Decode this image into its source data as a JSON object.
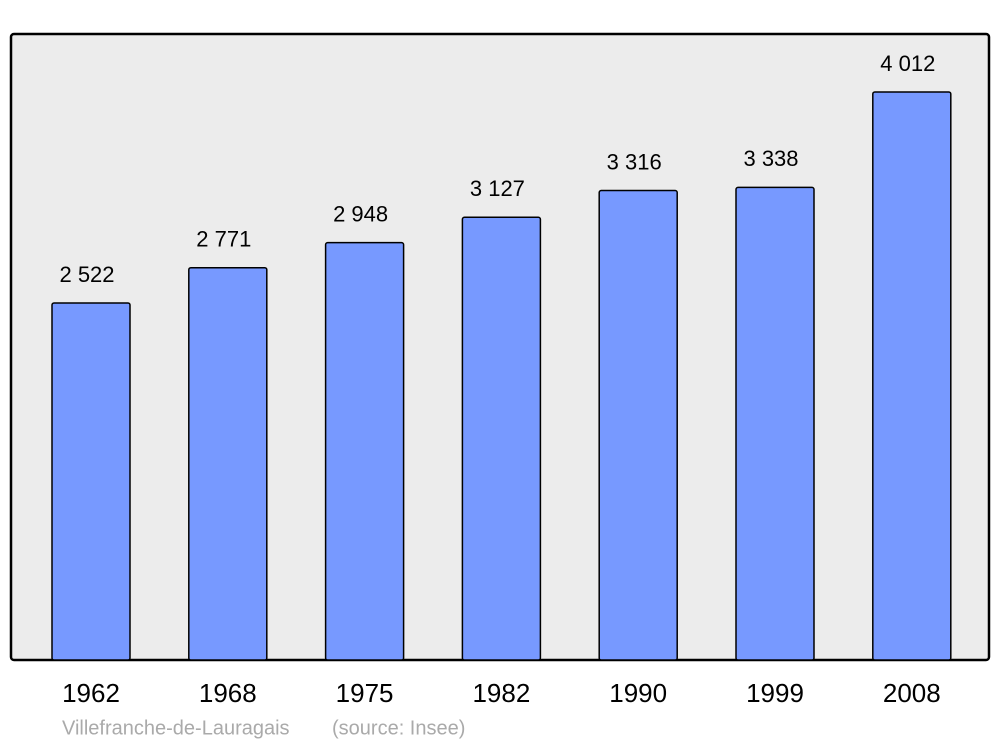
{
  "chart_data": {
    "type": "bar",
    "categories": [
      "1962",
      "1968",
      "1975",
      "1982",
      "1990",
      "1999",
      "2008"
    ],
    "values": [
      2522,
      2771,
      2948,
      3127,
      3316,
      3338,
      4012
    ],
    "value_labels": [
      "2 522",
      "2 771",
      "2 948",
      "3 127",
      "3 316",
      "3 338",
      "4 012"
    ],
    "color": "#7799ff",
    "caption": "Villefranche-de-Lauragais",
    "source": "(source: Insee)"
  }
}
